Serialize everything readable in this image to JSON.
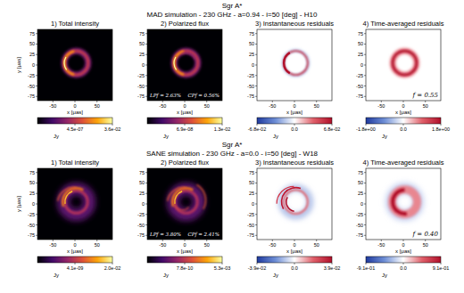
{
  "chart_data": [
    {
      "type": "image",
      "suptitle": "Sgr A*",
      "subtitle": "MAD simulation - 230 GHz - a=0.94 - i=50 [deg] - H10",
      "title": "1) Total intensity",
      "xlabel": "x [μas]",
      "ylabel": "y [μas]",
      "xlim": [
        -85,
        85
      ],
      "ylim": [
        -85,
        85
      ],
      "xticks": [
        -50,
        0,
        50
      ],
      "yticks": [
        -75,
        -50,
        -25,
        0,
        25,
        50,
        75
      ],
      "color": "inferno",
      "colorbar": {
        "range": [
          5.6e-12,
          0.036
        ],
        "log": true,
        "label": "Jy",
        "ticks": [
          {
            "value": 4.5e-07,
            "label": "4.5e-07"
          },
          {
            "value": 0.036,
            "label": "3.6e-02"
          }
        ]
      }
    },
    {
      "type": "image",
      "title": "2) Polarized flux",
      "xlabel": "x [μas]",
      "xlim": [
        -85,
        85
      ],
      "ylim": [
        -85,
        85
      ],
      "xticks": [
        -50,
        0,
        50
      ],
      "yticks": [
        -75,
        -50,
        -25,
        0,
        25,
        50,
        75
      ],
      "color": "inferno",
      "annotations": [
        "LPf = 2.63%",
        "CPf = 0.56%"
      ],
      "colorbar": {
        "range": [
          3.7e-13,
          0.013
        ],
        "log": true,
        "label": "Jy",
        "ticks": [
          {
            "value": 6.9e-08,
            "label": "6.9e-08"
          },
          {
            "value": 0.013,
            "label": "1.3e-02"
          }
        ]
      }
    },
    {
      "type": "image",
      "title": "3) Instantaneous residuals",
      "xlabel": "x [μas]",
      "xlim": [
        -85,
        85
      ],
      "ylim": [
        -85,
        85
      ],
      "xticks": [
        -50,
        0,
        50
      ],
      "yticks": [
        -75,
        -50,
        -25,
        0,
        25,
        50,
        75
      ],
      "color": "bwr",
      "colorbar": {
        "range": [
          -0.068,
          0.068
        ],
        "label": "Jy",
        "ticks": [
          {
            "value": -0.068,
            "label": "-6.8e-02"
          },
          {
            "value": 0,
            "label": "0.0"
          },
          {
            "value": 0.068,
            "label": "6.8e-02"
          }
        ]
      }
    },
    {
      "type": "image",
      "title": "4) Time-averaged residuals",
      "xlabel": "x [μas]",
      "xlim": [
        -85,
        85
      ],
      "ylim": [
        -85,
        85
      ],
      "xticks": [
        -50,
        0,
        50
      ],
      "yticks": [
        -75,
        -50,
        -25,
        0,
        25,
        50,
        75
      ],
      "color": "bwr",
      "annotations": [
        "f = 0.55"
      ],
      "colorbar": {
        "range": [
          -1.8,
          1.8
        ],
        "label": "Jy",
        "ticks": [
          {
            "value": -1.8,
            "label": "-1.8e+00"
          },
          {
            "value": 0,
            "label": "0.0"
          },
          {
            "value": 1.8,
            "label": "1.8e+00"
          }
        ]
      }
    },
    {
      "type": "image",
      "suptitle": "Sgr A*",
      "subtitle": "SANE simulation - 230 GHz - a=0.0 - i=50 [deg] - W18",
      "title": "1) Total intensity",
      "xlabel": "x [μas]",
      "ylabel": "y [μas]",
      "xlim": [
        -85,
        85
      ],
      "ylim": [
        -85,
        85
      ],
      "xticks": [
        -50,
        0,
        50
      ],
      "yticks": [
        -75,
        -50,
        -25,
        0,
        25,
        50,
        75
      ],
      "color": "inferno",
      "colorbar": {
        "range": [
          8.4e-16,
          0.02
        ],
        "log": true,
        "label": "Jy",
        "ticks": [
          {
            "value": 4.1e-09,
            "label": "4.1e-09"
          },
          {
            "value": 0.02,
            "label": "2.0e-02"
          }
        ]
      }
    },
    {
      "type": "image",
      "title": "2) Polarized flux",
      "xlabel": "x [μas]",
      "xlim": [
        -85,
        85
      ],
      "ylim": [
        -85,
        85
      ],
      "xticks": [
        -50,
        0,
        50
      ],
      "yticks": [
        -75,
        -50,
        -25,
        0,
        25,
        50,
        75
      ],
      "color": "inferno",
      "annotations": [
        "LPf = 3.80%",
        "CPf = 2.41%"
      ],
      "colorbar": {
        "range": [
          1.15e-16,
          0.0053
        ],
        "log": true,
        "label": "Jy",
        "ticks": [
          {
            "value": 7.8e-10,
            "label": "7.8e-10"
          },
          {
            "value": 0.0053,
            "label": "5.3e-03"
          }
        ]
      }
    },
    {
      "type": "image",
      "title": "3) Instantaneous residuals",
      "xlabel": "x [μas]",
      "xlim": [
        -85,
        85
      ],
      "ylim": [
        -85,
        85
      ],
      "xticks": [
        -50,
        0,
        50
      ],
      "yticks": [
        -75,
        -50,
        -25,
        0,
        25,
        50,
        75
      ],
      "color": "bwr",
      "colorbar": {
        "range": [
          -0.039,
          0.039
        ],
        "label": "Jy",
        "ticks": [
          {
            "value": -0.039,
            "label": "-3.9e-02"
          },
          {
            "value": 0,
            "label": "0.0"
          },
          {
            "value": 0.039,
            "label": "3.9e-02"
          }
        ]
      }
    },
    {
      "type": "image",
      "title": "4) Time-averaged residuals",
      "xlabel": "x [μas]",
      "xlim": [
        -85,
        85
      ],
      "ylim": [
        -85,
        85
      ],
      "xticks": [
        -50,
        0,
        50
      ],
      "yticks": [
        -75,
        -50,
        -25,
        0,
        25,
        50,
        75
      ],
      "color": "bwr",
      "annotations": [
        "f = 0.40"
      ],
      "colorbar": {
        "range": [
          -0.91,
          0.91
        ],
        "label": "Jy",
        "ticks": [
          {
            "value": -0.91,
            "label": "-9.1e-01"
          },
          {
            "value": 0,
            "label": "0.0"
          },
          {
            "value": 0.91,
            "label": "9.1e-01"
          }
        ]
      }
    }
  ]
}
